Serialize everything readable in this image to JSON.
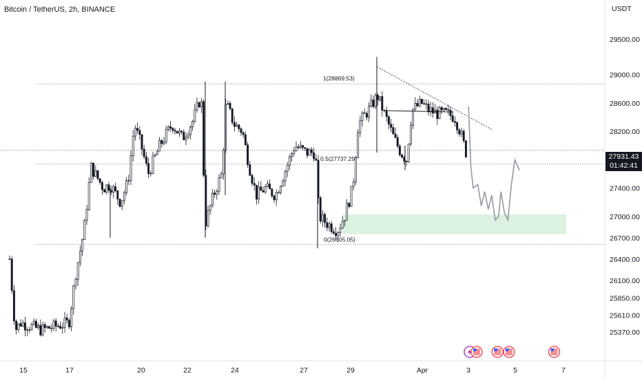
{
  "header": {
    "title": "Bitcoin / TetherUS, 2h, BINANCE"
  },
  "axis": {
    "currency": "USDT"
  },
  "last_price": {
    "value": "27931.43",
    "countdown": "01:42:41"
  },
  "chart_data": {
    "type": "candlestick",
    "title": "Bitcoin / TetherUS, 2h, BINANCE",
    "ylabel": "USDT",
    "ylim": [
      25250,
      29800
    ],
    "y_ticks": [
      "29500.00",
      "29000.00",
      "28600.00",
      "28200.00",
      "27400.00",
      "27000.00",
      "26700.00",
      "26400.00",
      "26100.00",
      "25850.00",
      "25610.00",
      "25370.00"
    ],
    "x_ticks": [
      "15",
      "17",
      "20",
      "22",
      "24",
      "27",
      "29",
      "Apr",
      "3",
      "5",
      "7"
    ],
    "fib_levels": [
      {
        "label": "1(28869.53)",
        "value": 28869.53
      },
      {
        "label": "0.5(27737.29)",
        "value": 27737.29
      },
      {
        "label": "0(26605.05)",
        "value": 26605.05
      }
    ],
    "demand_zone": {
      "from": 26750,
      "to": 27030
    },
    "forecast_path": [
      [
        3.0,
        28550
      ],
      [
        3.1,
        27700
      ],
      [
        3.2,
        27400
      ],
      [
        3.4,
        27450
      ],
      [
        3.55,
        27150
      ],
      [
        3.7,
        27350
      ],
      [
        3.85,
        27100
      ],
      [
        4.0,
        27300
      ],
      [
        4.15,
        26950
      ],
      [
        4.3,
        27000
      ],
      [
        4.4,
        27350
      ],
      [
        4.55,
        27050
      ],
      [
        4.7,
        26950
      ],
      [
        4.85,
        27450
      ],
      [
        5.0,
        27800
      ],
      [
        5.2,
        27650
      ]
    ],
    "events": [
      {
        "icon": "lightning-icon",
        "day": 3.05
      },
      {
        "icon": "us-flag-icon",
        "day": 3.35
      },
      {
        "icon": "us-flag-icon",
        "day": 4.25
      },
      {
        "icon": "us-flag-icon",
        "day": 4.75
      },
      {
        "icon": "us-flag-icon",
        "day": 6.7
      }
    ]
  }
}
